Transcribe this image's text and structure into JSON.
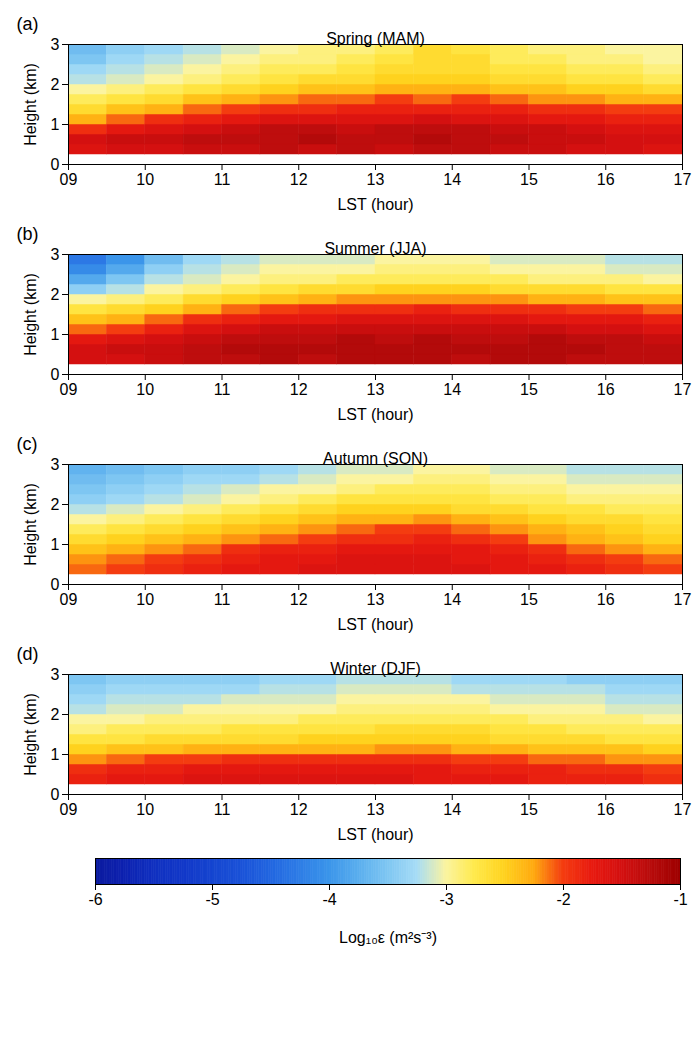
{
  "chart_data": [
    {
      "type": "heatmap",
      "letter": "(a)",
      "title": "Spring (MAM)",
      "xlabel": "LST (hour)",
      "ylabel": "Height (km)",
      "xlim": [
        9,
        17
      ],
      "ylim": [
        0,
        3
      ],
      "xticks": [
        {
          "value": 9,
          "label": "09"
        },
        10,
        11,
        12,
        13,
        14,
        15,
        16,
        17
      ],
      "yticks": [
        0,
        1,
        2,
        3
      ],
      "x": [
        9,
        9.5,
        10,
        10.5,
        11,
        11.5,
        12,
        12.5,
        13,
        13.5,
        14,
        14.5,
        15,
        15.5,
        16,
        16.5,
        17
      ],
      "y": [
        0.25,
        0.5,
        0.75,
        1,
        1.25,
        1.5,
        1.75,
        2,
        2.25,
        2.5,
        2.75,
        3
      ],
      "cells": [
        [
          -1.6,
          -1.5,
          -1.5,
          -1.4,
          -1.4,
          -1.3,
          -1.4,
          -1.3,
          -1.4,
          -1.3,
          -1.3,
          -1.4,
          -1.4,
          -1.5,
          -1.5,
          -1.6
        ],
        [
          -1.5,
          -1.4,
          -1.4,
          -1.3,
          -1.3,
          -1.3,
          -1.2,
          -1.3,
          -1.3,
          -1.2,
          -1.3,
          -1.3,
          -1.4,
          -1.4,
          -1.5,
          -1.5
        ],
        [
          -1.9,
          -1.7,
          -1.6,
          -1.5,
          -1.4,
          -1.3,
          -1.3,
          -1.4,
          -1.3,
          -1.3,
          -1.3,
          -1.4,
          -1.4,
          -1.5,
          -1.6,
          -1.6
        ],
        [
          -2.3,
          -2.1,
          -1.9,
          -1.8,
          -1.7,
          -1.6,
          -1.6,
          -1.6,
          -1.6,
          -1.5,
          -1.6,
          -1.6,
          -1.7,
          -1.7,
          -1.8,
          -1.8
        ],
        [
          -2.6,
          -2.4,
          -2.3,
          -2.1,
          -2.0,
          -1.9,
          -1.9,
          -1.8,
          -1.8,
          -1.8,
          -1.8,
          -1.8,
          -1.9,
          -1.9,
          -2.0,
          -2.0
        ],
        [
          -2.8,
          -2.7,
          -2.6,
          -2.4,
          -2.3,
          -2.2,
          -2.1,
          -2.1,
          -2.0,
          -2.1,
          -2.0,
          -2.1,
          -2.2,
          -2.2,
          -2.3,
          -2.3
        ],
        [
          -3.0,
          -2.9,
          -2.8,
          -2.7,
          -2.6,
          -2.5,
          -2.4,
          -2.4,
          -2.3,
          -2.3,
          -2.3,
          -2.4,
          -2.4,
          -2.5,
          -2.5,
          -2.6
        ],
        [
          -3.2,
          -3.1,
          -3.0,
          -2.9,
          -2.8,
          -2.7,
          -2.6,
          -2.6,
          -2.5,
          -2.5,
          -2.5,
          -2.6,
          -2.6,
          -2.7,
          -2.7,
          -2.8
        ],
        [
          -3.3,
          -3.2,
          -3.1,
          -3.0,
          -2.9,
          -2.8,
          -2.8,
          -2.7,
          -2.6,
          -2.6,
          -2.6,
          -2.7,
          -2.7,
          -2.8,
          -2.8,
          -2.9
        ],
        [
          -3.5,
          -3.3,
          -3.2,
          -3.1,
          -3.0,
          -2.9,
          -2.9,
          -2.8,
          -2.7,
          -2.6,
          -2.6,
          -2.8,
          -2.8,
          -2.9,
          -2.9,
          -3.0
        ],
        [
          -3.6,
          -3.4,
          -3.3,
          -3.2,
          -3.1,
          -3.0,
          -2.9,
          -2.9,
          -2.8,
          -2.6,
          -2.7,
          -2.8,
          -2.9,
          -2.9,
          -3.0,
          -3.0
        ]
      ]
    },
    {
      "type": "heatmap",
      "letter": "(b)",
      "title": "Summer (JJA)",
      "xlabel": "LST (hour)",
      "ylabel": "Height (km)",
      "xlim": [
        9,
        17
      ],
      "ylim": [
        0,
        3
      ],
      "xticks": [
        {
          "value": 9,
          "label": "09"
        },
        10,
        11,
        12,
        13,
        14,
        15,
        16,
        17
      ],
      "yticks": [
        0,
        1,
        2,
        3
      ],
      "x": [
        9,
        9.5,
        10,
        10.5,
        11,
        11.5,
        12,
        12.5,
        13,
        13.5,
        14,
        14.5,
        15,
        15.5,
        16,
        16.5,
        17
      ],
      "y": [
        0.25,
        0.5,
        0.75,
        1,
        1.25,
        1.5,
        1.75,
        2,
        2.25,
        2.5,
        2.75,
        3
      ],
      "cells": [
        [
          -1.5,
          -1.5,
          -1.4,
          -1.3,
          -1.3,
          -1.2,
          -1.3,
          -1.2,
          -1.2,
          -1.2,
          -1.3,
          -1.2,
          -1.2,
          -1.3,
          -1.3,
          -1.3
        ],
        [
          -1.5,
          -1.4,
          -1.4,
          -1.3,
          -1.2,
          -1.2,
          -1.2,
          -1.2,
          -1.2,
          -1.2,
          -1.2,
          -1.2,
          -1.2,
          -1.2,
          -1.3,
          -1.3
        ],
        [
          -1.7,
          -1.6,
          -1.5,
          -1.4,
          -1.3,
          -1.3,
          -1.3,
          -1.2,
          -1.3,
          -1.2,
          -1.3,
          -1.3,
          -1.2,
          -1.3,
          -1.3,
          -1.4
        ],
        [
          -2.1,
          -2.0,
          -1.8,
          -1.6,
          -1.5,
          -1.4,
          -1.4,
          -1.4,
          -1.4,
          -1.4,
          -1.4,
          -1.4,
          -1.4,
          -1.5,
          -1.5,
          -1.6
        ],
        [
          -2.4,
          -2.3,
          -2.1,
          -1.9,
          -1.8,
          -1.7,
          -1.7,
          -1.6,
          -1.6,
          -1.6,
          -1.6,
          -1.6,
          -1.7,
          -1.7,
          -1.7,
          -1.8
        ],
        [
          -2.7,
          -2.6,
          -2.5,
          -2.3,
          -2.1,
          -2.0,
          -1.9,
          -1.9,
          -1.9,
          -1.8,
          -1.9,
          -1.9,
          -1.9,
          -2.0,
          -2.0,
          -2.1
        ],
        [
          -3.0,
          -2.9,
          -2.8,
          -2.6,
          -2.5,
          -2.4,
          -2.3,
          -2.2,
          -2.2,
          -2.2,
          -2.2,
          -2.2,
          -2.3,
          -2.3,
          -2.4,
          -2.4
        ],
        [
          -3.4,
          -3.2,
          -3.0,
          -2.9,
          -2.8,
          -2.7,
          -2.6,
          -2.6,
          -2.5,
          -2.5,
          -2.5,
          -2.6,
          -2.6,
          -2.6,
          -2.7,
          -2.7
        ],
        [
          -3.8,
          -3.5,
          -3.2,
          -3.1,
          -3.0,
          -2.9,
          -2.9,
          -2.8,
          -2.8,
          -2.8,
          -2.8,
          -2.8,
          -2.9,
          -2.9,
          -2.9,
          -3.0
        ],
        [
          -4.1,
          -3.8,
          -3.4,
          -3.2,
          -3.1,
          -3.0,
          -3.0,
          -3.0,
          -2.9,
          -2.9,
          -2.9,
          -3.0,
          -3.0,
          -3.0,
          -3.1,
          -3.1
        ],
        [
          -4.3,
          -4.0,
          -3.6,
          -3.3,
          -3.2,
          -3.1,
          -3.1,
          -3.1,
          -3.0,
          -3.0,
          -3.0,
          -3.1,
          -3.1,
          -3.1,
          -3.2,
          -3.2
        ]
      ]
    },
    {
      "type": "heatmap",
      "letter": "(c)",
      "title": "Autumn (SON)",
      "xlabel": "LST (hour)",
      "ylabel": "Height (km)",
      "xlim": [
        9,
        17
      ],
      "ylim": [
        0,
        3
      ],
      "xticks": [
        {
          "value": 9,
          "label": "09"
        },
        10,
        11,
        12,
        13,
        14,
        15,
        16,
        17
      ],
      "yticks": [
        0,
        1,
        2,
        3
      ],
      "x": [
        9,
        9.5,
        10,
        10.5,
        11,
        11.5,
        12,
        12.5,
        13,
        13.5,
        14,
        14.5,
        15,
        15.5,
        16,
        16.5,
        17
      ],
      "y": [
        0.25,
        0.5,
        0.75,
        1,
        1.25,
        1.5,
        1.75,
        2,
        2.25,
        2.5,
        2.75,
        3
      ],
      "cells": [
        [
          -2.1,
          -2.0,
          -1.9,
          -1.8,
          -1.7,
          -1.7,
          -1.6,
          -1.6,
          -1.6,
          -1.6,
          -1.6,
          -1.7,
          -1.7,
          -1.8,
          -1.9,
          -2.0
        ],
        [
          -2.2,
          -2.1,
          -2.0,
          -1.9,
          -1.8,
          -1.7,
          -1.7,
          -1.6,
          -1.6,
          -1.6,
          -1.7,
          -1.7,
          -1.8,
          -1.9,
          -2.0,
          -2.1
        ],
        [
          -2.4,
          -2.3,
          -2.2,
          -2.1,
          -1.9,
          -1.8,
          -1.8,
          -1.7,
          -1.7,
          -1.7,
          -1.7,
          -1.8,
          -1.9,
          -2.1,
          -2.2,
          -2.3
        ],
        [
          -2.6,
          -2.5,
          -2.4,
          -2.3,
          -2.2,
          -2.1,
          -2.0,
          -1.9,
          -1.9,
          -1.8,
          -1.9,
          -2.0,
          -2.2,
          -2.3,
          -2.4,
          -2.5
        ],
        [
          -2.8,
          -2.7,
          -2.6,
          -2.5,
          -2.4,
          -2.3,
          -2.2,
          -2.1,
          -2.0,
          -2.0,
          -2.1,
          -2.2,
          -2.3,
          -2.4,
          -2.5,
          -2.6
        ],
        [
          -3.0,
          -2.9,
          -2.8,
          -2.7,
          -2.6,
          -2.5,
          -2.4,
          -2.3,
          -2.3,
          -2.2,
          -2.3,
          -2.4,
          -2.5,
          -2.6,
          -2.6,
          -2.7
        ],
        [
          -3.2,
          -3.1,
          -3.0,
          -2.9,
          -2.8,
          -2.7,
          -2.6,
          -2.5,
          -2.5,
          -2.5,
          -2.6,
          -2.6,
          -2.7,
          -2.7,
          -2.8,
          -2.8
        ],
        [
          -3.4,
          -3.3,
          -3.2,
          -3.1,
          -3.0,
          -2.9,
          -2.8,
          -2.7,
          -2.7,
          -2.7,
          -2.7,
          -2.8,
          -2.8,
          -2.9,
          -2.9,
          -2.9
        ],
        [
          -3.5,
          -3.4,
          -3.3,
          -3.2,
          -3.1,
          -3.0,
          -3.0,
          -2.9,
          -2.8,
          -2.8,
          -2.8,
          -2.9,
          -2.9,
          -3.0,
          -3.0,
          -3.0
        ],
        [
          -3.6,
          -3.5,
          -3.4,
          -3.3,
          -3.3,
          -3.2,
          -3.1,
          -3.0,
          -3.0,
          -2.9,
          -2.9,
          -3.0,
          -3.0,
          -3.1,
          -3.1,
          -3.1
        ],
        [
          -3.7,
          -3.6,
          -3.5,
          -3.4,
          -3.4,
          -3.3,
          -3.2,
          -3.1,
          -3.1,
          -3.0,
          -3.0,
          -3.1,
          -3.1,
          -3.2,
          -3.2,
          -3.2
        ]
      ]
    },
    {
      "type": "heatmap",
      "letter": "(d)",
      "title": "Winter (DJF)",
      "xlabel": "LST (hour)",
      "ylabel": "Height (km)",
      "xlim": [
        9,
        17
      ],
      "ylim": [
        0,
        3
      ],
      "xticks": [
        {
          "value": 9,
          "label": "09"
        },
        10,
        11,
        12,
        13,
        14,
        15,
        16,
        17
      ],
      "yticks": [
        0,
        1,
        2,
        3
      ],
      "x": [
        9,
        9.5,
        10,
        10.5,
        11,
        11.5,
        12,
        12.5,
        13,
        13.5,
        14,
        14.5,
        15,
        15.5,
        16,
        16.5,
        17
      ],
      "y": [
        0.25,
        0.5,
        0.75,
        1,
        1.25,
        1.5,
        1.75,
        2,
        2.25,
        2.5,
        2.75,
        3
      ],
      "cells": [
        [
          -1.8,
          -1.7,
          -1.7,
          -1.6,
          -1.6,
          -1.6,
          -1.6,
          -1.6,
          -1.6,
          -1.7,
          -1.7,
          -1.7,
          -1.8,
          -1.8,
          -1.8,
          -1.9
        ],
        [
          -1.9,
          -1.8,
          -1.8,
          -1.7,
          -1.7,
          -1.7,
          -1.7,
          -1.7,
          -1.7,
          -1.7,
          -1.8,
          -1.8,
          -1.8,
          -1.9,
          -1.9,
          -2.0
        ],
        [
          -2.2,
          -2.1,
          -2.0,
          -2.0,
          -1.9,
          -1.9,
          -1.9,
          -1.9,
          -1.9,
          -1.9,
          -2.0,
          -2.0,
          -2.1,
          -2.1,
          -2.2,
          -2.2
        ],
        [
          -2.5,
          -2.4,
          -2.4,
          -2.3,
          -2.3,
          -2.3,
          -2.3,
          -2.3,
          -2.2,
          -2.2,
          -2.3,
          -2.3,
          -2.4,
          -2.4,
          -2.4,
          -2.5
        ],
        [
          -2.7,
          -2.7,
          -2.6,
          -2.6,
          -2.6,
          -2.6,
          -2.5,
          -2.5,
          -2.5,
          -2.5,
          -2.5,
          -2.6,
          -2.6,
          -2.6,
          -2.7,
          -2.7
        ],
        [
          -2.9,
          -2.8,
          -2.8,
          -2.8,
          -2.7,
          -2.7,
          -2.7,
          -2.7,
          -2.6,
          -2.6,
          -2.6,
          -2.7,
          -2.7,
          -2.8,
          -2.8,
          -2.8
        ],
        [
          -3.0,
          -3.0,
          -2.9,
          -2.9,
          -2.9,
          -2.9,
          -2.8,
          -2.8,
          -2.8,
          -2.8,
          -2.8,
          -2.8,
          -2.9,
          -2.9,
          -2.9,
          -3.0
        ],
        [
          -3.2,
          -3.1,
          -3.1,
          -3.0,
          -3.0,
          -3.0,
          -3.0,
          -2.9,
          -2.9,
          -2.9,
          -2.9,
          -3.0,
          -3.0,
          -3.0,
          -3.1,
          -3.1
        ],
        [
          -3.3,
          -3.2,
          -3.2,
          -3.2,
          -3.1,
          -3.1,
          -3.1,
          -3.0,
          -3.0,
          -3.0,
          -3.0,
          -3.1,
          -3.1,
          -3.1,
          -3.2,
          -3.2
        ],
        [
          -3.4,
          -3.3,
          -3.3,
          -3.3,
          -3.3,
          -3.2,
          -3.2,
          -3.1,
          -3.1,
          -3.1,
          -3.2,
          -3.2,
          -3.2,
          -3.2,
          -3.3,
          -3.3
        ],
        [
          -3.5,
          -3.4,
          -3.4,
          -3.4,
          -3.4,
          -3.3,
          -3.3,
          -3.2,
          -3.2,
          -3.2,
          -3.3,
          -3.3,
          -3.3,
          -3.4,
          -3.4,
          -3.4
        ]
      ]
    }
  ],
  "colorbar": {
    "label": "Log₁₀ε (m²s⁻³)",
    "range": [
      -6,
      -1
    ],
    "ticks": [
      -6,
      -5,
      -4,
      -3,
      -2,
      -1
    ],
    "colors": [
      "#0b1a9e",
      "#0d22b0",
      "#1030c0",
      "#1238c8",
      "#1545d0",
      "#1a52d8",
      "#2266e0",
      "#2e7de6",
      "#3b95ea",
      "#5aaeee",
      "#7ec6f2",
      "#a6dcf6",
      "#fbf4a0",
      "#ffe94a",
      "#ffd21e",
      "#ffaa10",
      "#f43c10",
      "#e81a10",
      "#d41010",
      "#b80c0c",
      "#9e0000"
    ]
  }
}
